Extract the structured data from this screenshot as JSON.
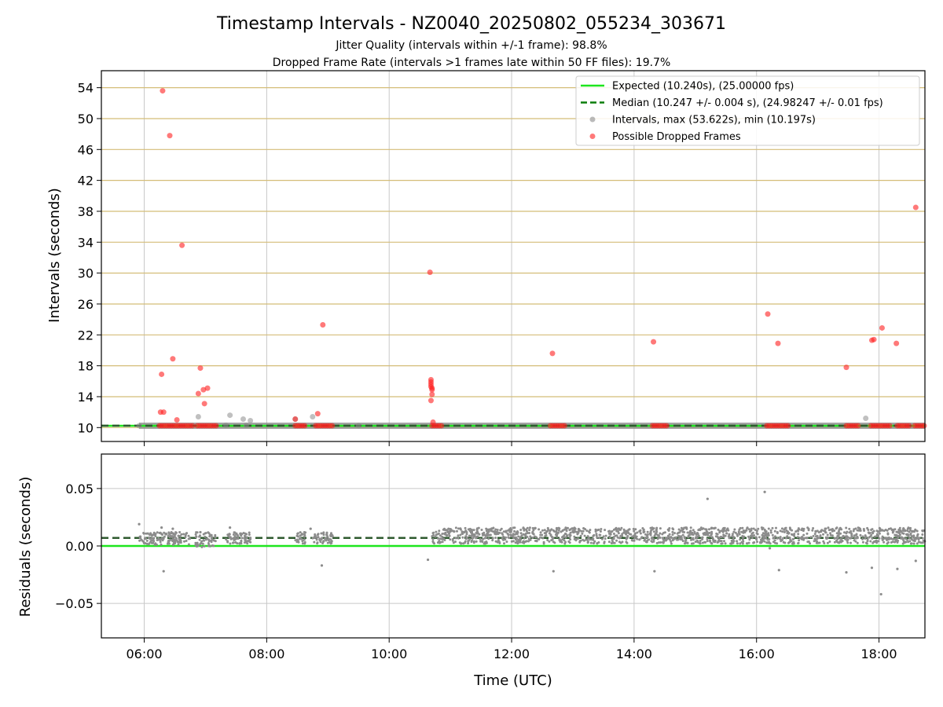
{
  "title": "Timestamp Intervals - NZ0040_20250802_055234_303671",
  "subtitle_lines": [
    "Jitter Quality (intervals within +/-1 frame): 98.8%",
    "Dropped Frame Rate (intervals >1 frames late within 50 FF files): 19.7%"
  ],
  "colors": {
    "expected": "#1ee61e",
    "median": "#0a7d0a",
    "median_residual": "#2e5a2e",
    "intervals": "#8c8c8c",
    "dropped": "#ff2020",
    "hgrid_top": "#d4bd78",
    "grid": "#c8c8c8"
  },
  "chart_data": [
    {
      "type": "scatter",
      "ylabel": "Intervals (seconds)",
      "xlim": [
        "05:18",
        "18:45"
      ],
      "ylim": [
        8.2,
        56.2
      ],
      "yticks": [
        "10",
        "14",
        "18",
        "22",
        "26",
        "30",
        "34",
        "38",
        "42",
        "46",
        "50",
        "54"
      ],
      "xticks": [
        "06:00",
        "08:00",
        "10:00",
        "12:00",
        "14:00",
        "16:00",
        "18:00"
      ],
      "hgrid_color": "#d4bd78",
      "legend": {
        "location": "top-right",
        "entries": [
          {
            "label": "Expected (10.240s), (25.00000 fps)",
            "kind": "solid-line",
            "color": "#1ee61e"
          },
          {
            "label": "Median (10.247 +/- 0.004 s), (24.98247 +/- 0.01 fps)",
            "kind": "dashed-line",
            "color": "#0a7d0a"
          },
          {
            "label": "Intervals, max (53.622s), min (10.197s)",
            "kind": "marker",
            "color": "#8c8c8c"
          },
          {
            "label": "Possible Dropped Frames",
            "kind": "marker",
            "color": "#ff2020"
          }
        ]
      },
      "reference_lines": [
        {
          "series": "Expected",
          "y": 10.24,
          "style": "solid"
        },
        {
          "series": "Median",
          "y": 10.247,
          "style": "dashed"
        }
      ],
      "baseline_band": {
        "x_start": "05:55",
        "x_end": "18:45",
        "y": 10.24
      },
      "series": [
        {
          "name": "Intervals, max (53.622s), min (10.197s)",
          "points": [
            [
              "06:53",
              11.4
            ],
            [
              "07:24",
              11.6
            ],
            [
              "07:37",
              11.1
            ],
            [
              "07:44",
              10.9
            ],
            [
              "08:28",
              11.1
            ],
            [
              "08:45",
              11.4
            ],
            [
              "17:47",
              11.2
            ],
            [
              "05:55",
              10.24
            ],
            [
              "07:20",
              10.3
            ],
            [
              "07:40",
              10.3
            ],
            [
              "09:30",
              10.25
            ]
          ]
        },
        {
          "name": "Possible Dropped Frames",
          "points": [
            [
              "06:18",
              53.6
            ],
            [
              "06:25",
              47.8
            ],
            [
              "06:28",
              18.9
            ],
            [
              "06:37",
              33.6
            ],
            [
              "06:17",
              16.9
            ],
            [
              "06:16",
              12.0
            ],
            [
              "06:19",
              12.0
            ],
            [
              "06:32",
              11.0
            ],
            [
              "06:55",
              17.7
            ],
            [
              "06:53",
              14.4
            ],
            [
              "06:58",
              14.9
            ],
            [
              "07:02",
              15.1
            ],
            [
              "06:59",
              13.1
            ],
            [
              "08:28",
              11.1
            ],
            [
              "08:50",
              11.8
            ],
            [
              "08:55",
              23.3
            ],
            [
              "10:40",
              30.1
            ],
            [
              "10:41",
              16.2
            ],
            [
              "10:41",
              15.9
            ],
            [
              "10:41",
              15.6
            ],
            [
              "10:41",
              15.3
            ],
            [
              "10:42",
              15.1
            ],
            [
              "10:42",
              14.9
            ],
            [
              "10:42",
              14.3
            ],
            [
              "10:41",
              13.5
            ],
            [
              "10:43",
              10.7
            ],
            [
              "12:40",
              19.6
            ],
            [
              "14:19",
              21.1
            ],
            [
              "16:11",
              24.7
            ],
            [
              "16:21",
              20.9
            ],
            [
              "17:28",
              17.8
            ],
            [
              "17:53",
              21.3
            ],
            [
              "17:55",
              21.4
            ],
            [
              "18:03",
              22.9
            ],
            [
              "18:17",
              20.9
            ],
            [
              "18:36",
              38.5
            ]
          ],
          "clusters_at_baseline": [
            [
              "06:15",
              "06:48"
            ],
            [
              "06:52",
              "07:12"
            ],
            [
              "08:28",
              "08:38"
            ],
            [
              "08:48",
              "09:05"
            ],
            [
              "10:42",
              "10:53"
            ],
            [
              "12:38",
              "12:52"
            ],
            [
              "14:18",
              "14:32"
            ],
            [
              "16:10",
              "16:32"
            ],
            [
              "17:28",
              "17:40"
            ],
            [
              "17:52",
              "18:12"
            ],
            [
              "18:18",
              "18:30"
            ],
            [
              "18:35",
              "18:45"
            ]
          ]
        }
      ]
    },
    {
      "type": "scatter",
      "xlabel": "Time (UTC)",
      "ylabel": "Residuals (seconds)",
      "xlim": [
        "05:18",
        "18:45"
      ],
      "ylim": [
        -0.08,
        0.08
      ],
      "yticks": [
        "0.05",
        "0.00",
        "−0.05"
      ],
      "xticks": [
        "06:00",
        "08:00",
        "10:00",
        "12:00",
        "14:00",
        "16:00",
        "18:00"
      ],
      "reference_lines": [
        {
          "series": "Expected",
          "y": 0.0,
          "style": "solid"
        },
        {
          "series": "Median",
          "y": 0.007,
          "style": "dashed"
        }
      ],
      "series": [
        {
          "name": "Residuals",
          "dense_regions": [
            {
              "x_start": "05:55",
              "x_end": "06:45",
              "y_min": 0.001,
              "y_max": 0.012
            },
            {
              "x_start": "06:50",
              "x_end": "07:10",
              "y_min": -0.001,
              "y_max": 0.012
            },
            {
              "x_start": "07:20",
              "x_end": "07:45",
              "y_min": 0.002,
              "y_max": 0.012
            },
            {
              "x_start": "08:28",
              "x_end": "08:38",
              "y_min": 0.002,
              "y_max": 0.012
            },
            {
              "x_start": "08:45",
              "x_end": "09:05",
              "y_min": 0.002,
              "y_max": 0.012
            },
            {
              "x_start": "10:42",
              "x_end": "18:45",
              "y_min": 0.002,
              "y_max": 0.016
            }
          ],
          "outliers": [
            [
              "05:55",
              0.019
            ],
            [
              "06:17",
              0.016
            ],
            [
              "06:28",
              0.015
            ],
            [
              "06:55",
              0.012
            ],
            [
              "07:24",
              0.016
            ],
            [
              "08:43",
              0.015
            ],
            [
              "06:19",
              -0.022
            ],
            [
              "08:54",
              -0.017
            ],
            [
              "10:38",
              -0.012
            ],
            [
              "12:41",
              -0.022
            ],
            [
              "14:20",
              -0.022
            ],
            [
              "15:12",
              0.041
            ],
            [
              "16:08",
              0.047
            ],
            [
              "16:13",
              -0.002
            ],
            [
              "16:22",
              -0.021
            ],
            [
              "17:28",
              -0.023
            ],
            [
              "17:53",
              -0.019
            ],
            [
              "18:02",
              -0.042
            ],
            [
              "18:18",
              -0.02
            ],
            [
              "18:36",
              -0.013
            ]
          ]
        }
      ]
    }
  ]
}
